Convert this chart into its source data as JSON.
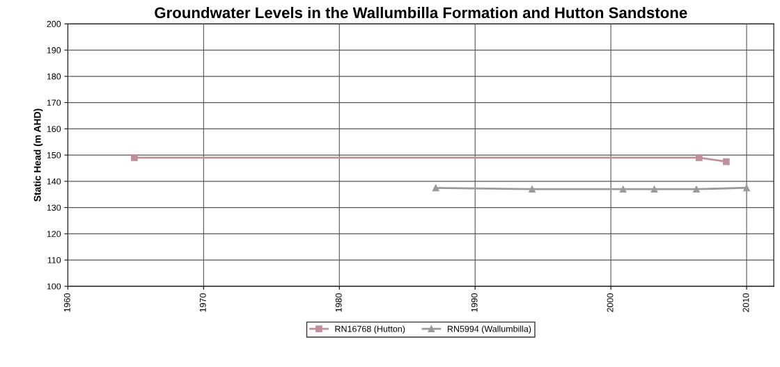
{
  "chart_data": {
    "type": "line",
    "title": "Groundwater Levels in the Wallumbilla Formation and Hutton Sandstone",
    "ylabel": "Static Head (m AHD)",
    "series": [
      {
        "name": "RN16768 (Hutton)",
        "color": "#c0909a",
        "marker": "square",
        "x": [
          1964.9,
          2006.5,
          2008.5
        ],
        "values": [
          149,
          149,
          147.5
        ]
      },
      {
        "name": "RN5994 (Wallumbilla)",
        "color": "#9a9a9a",
        "marker": "triangle",
        "x": [
          1987.1,
          1994.2,
          2000.9,
          2003.2,
          2006.3,
          2010.0
        ],
        "values": [
          137.5,
          137,
          137,
          137,
          137,
          137.5
        ]
      }
    ],
    "xlim": [
      1960,
      2012
    ],
    "xticks": [
      1960,
      1970,
      1980,
      1990,
      2000,
      2010
    ],
    "ylim": [
      100,
      200
    ],
    "yticks": [
      100,
      110,
      120,
      130,
      140,
      150,
      160,
      170,
      180,
      190,
      200
    ],
    "grid": true,
    "legend": "bottom",
    "line_style": "solid"
  }
}
